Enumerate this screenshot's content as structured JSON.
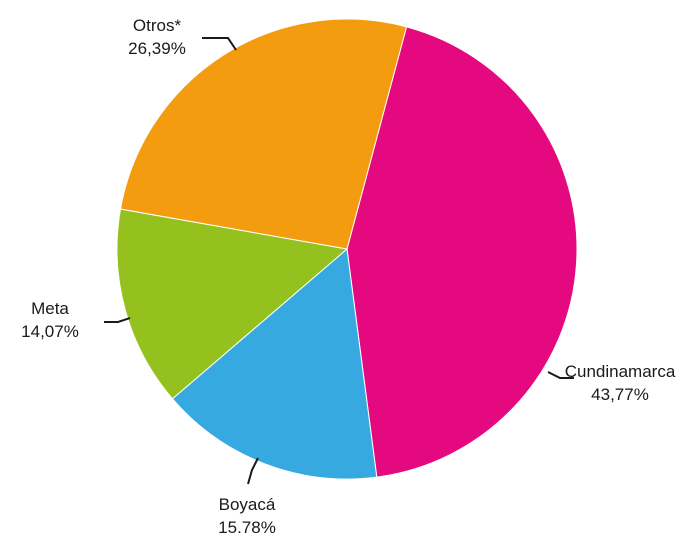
{
  "chart_data": {
    "type": "pie",
    "slices": [
      {
        "label": "Cundinamarca",
        "value_label": "43,77%",
        "value": 43.77,
        "color": "#E5097F"
      },
      {
        "label": "Boyacá",
        "value_label": "15.78%",
        "value": 15.78,
        "color": "#36A9E1"
      },
      {
        "label": "Meta",
        "value_label": "14,07%",
        "value": 14.07,
        "color": "#95C11F"
      },
      {
        "label": "Otros*",
        "value_label": "26,39%",
        "value": 26.39,
        "color": "#F39C0F"
      }
    ],
    "start_angle_deg": 15,
    "direction": "clockwise",
    "legend": "none"
  }
}
